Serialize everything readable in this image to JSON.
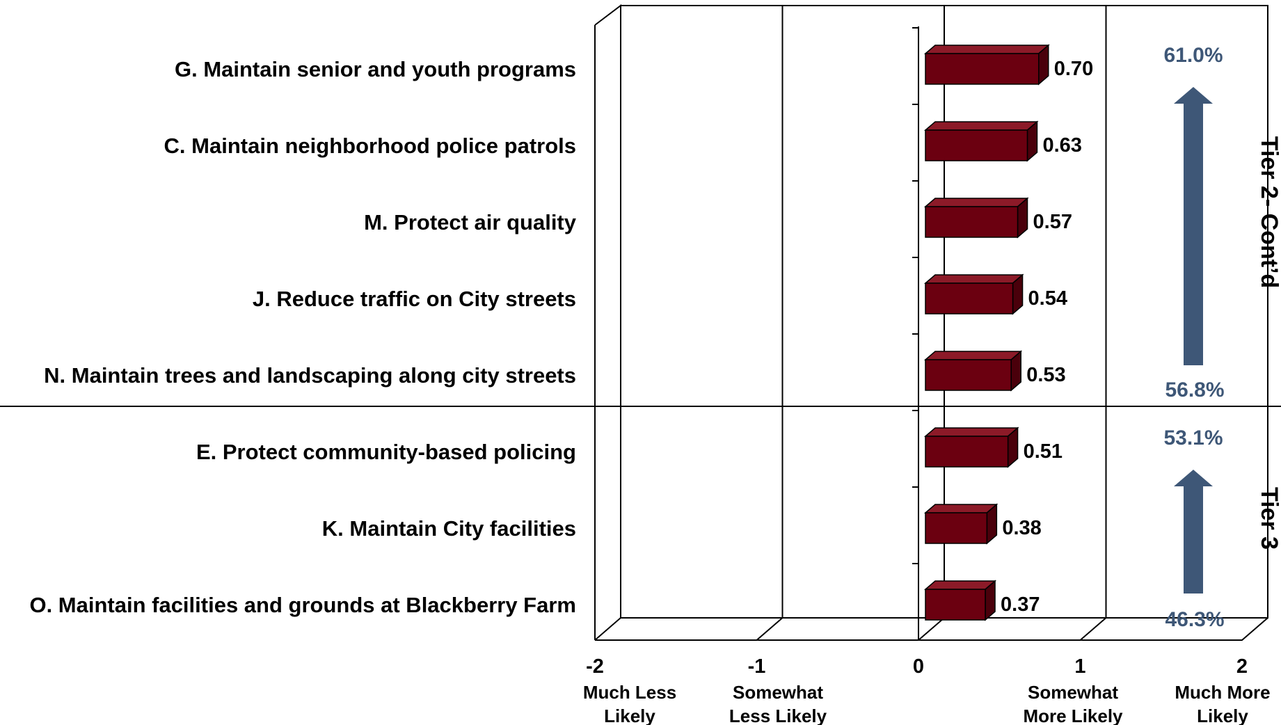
{
  "chart_data": {
    "type": "bar",
    "orientation": "horizontal",
    "categories": [
      "G. Maintain senior and youth programs",
      "C. Maintain neighborhood police patrols",
      "M. Protect air quality",
      "J. Reduce traffic on City streets",
      "N. Maintain trees and landscaping along city streets",
      "E. Protect community-based policing",
      "K. Maintain City facilities",
      "O. Maintain facilities and grounds at Blackberry Farm"
    ],
    "values": [
      0.7,
      0.63,
      0.57,
      0.54,
      0.53,
      0.51,
      0.38,
      0.37
    ],
    "value_labels": [
      "0.70",
      "0.63",
      "0.57",
      "0.54",
      "0.53",
      "0.51",
      "0.38",
      "0.37"
    ],
    "xlim": [
      -2,
      2
    ],
    "x_ticks": [
      {
        "value": -2,
        "label": "-2",
        "desc": [
          "Much Less",
          "Likely"
        ]
      },
      {
        "value": -1,
        "label": "-1",
        "desc": [
          "Somewhat",
          "Less Likely"
        ]
      },
      {
        "value": 0,
        "label": "0",
        "desc": []
      },
      {
        "value": 1,
        "label": "1",
        "desc": [
          "Somewhat",
          "More Likely"
        ]
      },
      {
        "value": 2,
        "label": "2",
        "desc": [
          "Much More",
          "Likely"
        ]
      }
    ],
    "bar_color": "#6b0010",
    "grid": true,
    "tiers": [
      {
        "label": "Tier 2- Cont’d",
        "first_index": 0,
        "last_index": 4,
        "pct_top": "61.0%",
        "pct_bottom": "56.8%"
      },
      {
        "label": "Tier 3",
        "first_index": 5,
        "last_index": 7,
        "pct_top": "53.1%",
        "pct_bottom": "46.3%"
      }
    ],
    "accent_color": "#3e5777"
  }
}
